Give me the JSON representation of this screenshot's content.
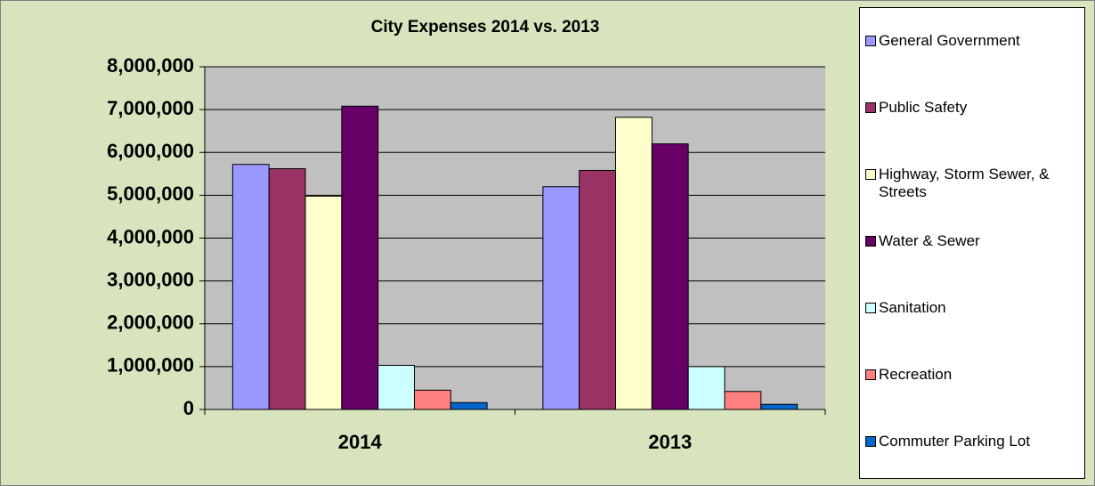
{
  "chart_data": {
    "type": "bar",
    "title": "City Expenses 2014 vs. 2013",
    "categories": [
      "2014",
      "2013"
    ],
    "series": [
      {
        "name": "General Government",
        "color": "#9999ff",
        "values": [
          5720000,
          5200000
        ]
      },
      {
        "name": "Public Safety",
        "color": "#993366",
        "values": [
          5620000,
          5580000
        ]
      },
      {
        "name": "Highway, Storm Sewer, & Streets",
        "color": "#ffffcc",
        "values": [
          4980000,
          6820000
        ]
      },
      {
        "name": "Water & Sewer",
        "color": "#660066",
        "values": [
          7080000,
          6200000
        ]
      },
      {
        "name": "Sanitation",
        "color": "#ccffff",
        "values": [
          1030000,
          1000000
        ]
      },
      {
        "name": "Recreation",
        "color": "#ff8080",
        "values": [
          450000,
          420000
        ]
      },
      {
        "name": "Commuter Parking Lot",
        "color": "#0066cc",
        "values": [
          160000,
          120000
        ]
      }
    ],
    "ylim": [
      0,
      8000000
    ],
    "yticks": [
      0,
      {
        "value": 1000000,
        "label": "1,000,000"
      },
      {
        "value": 2000000,
        "label": "2,000,000"
      },
      {
        "value": 3000000,
        "label": "3,000,000"
      },
      {
        "value": 4000000,
        "label": "4,000,000"
      },
      {
        "value": 5000000,
        "label": "5,000,000"
      },
      {
        "value": 6000000,
        "label": "6,000,000"
      },
      {
        "value": 7000000,
        "label": "7,000,000"
      },
      {
        "value": 8000000,
        "label": "8,000,000"
      }
    ],
    "grid": true,
    "legend": "right"
  }
}
